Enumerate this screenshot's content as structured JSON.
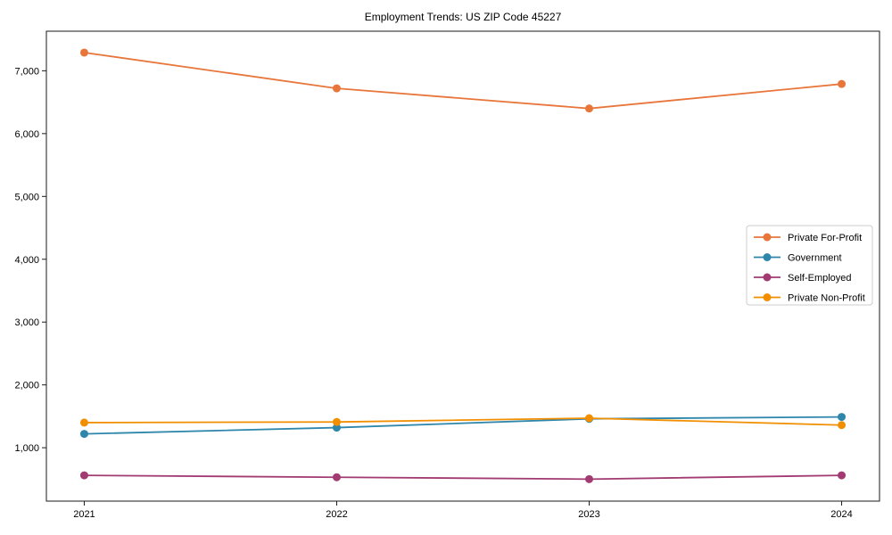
{
  "chart_data": {
    "type": "line",
    "title": "Employment Trends: US ZIP Code 45227",
    "categories": [
      "2021",
      "2022",
      "2023",
      "2024"
    ],
    "series": [
      {
        "name": "Private For-Profit",
        "color": "#E8763B",
        "values": [
          7290,
          6720,
          6400,
          6790
        ]
      },
      {
        "name": "Government",
        "color": "#2E86AB",
        "values": [
          1220,
          1320,
          1460,
          1490
        ]
      },
      {
        "name": "Self-Employed",
        "color": "#A23B72",
        "values": [
          560,
          530,
          500,
          560
        ]
      },
      {
        "name": "Private Non-Profit",
        "color": "#F18F01",
        "values": [
          1400,
          1410,
          1470,
          1360
        ]
      }
    ],
    "xlabel": "",
    "ylabel": "",
    "xlim": [
      2020.85,
      2024.15
    ],
    "ylim": [
      150,
      7630
    ],
    "yticks": [
      1000,
      2000,
      3000,
      4000,
      5000,
      6000,
      7000
    ],
    "ytick_labels": [
      "1,000",
      "2,000",
      "3,000",
      "4,000",
      "5,000",
      "6,000",
      "7,000"
    ],
    "grid": false,
    "legend_position": "center-right",
    "marker": "circle",
    "axis_color": "#1a1a1a",
    "legend_border_color": "#cccccc",
    "background_color": "#ffffff"
  }
}
